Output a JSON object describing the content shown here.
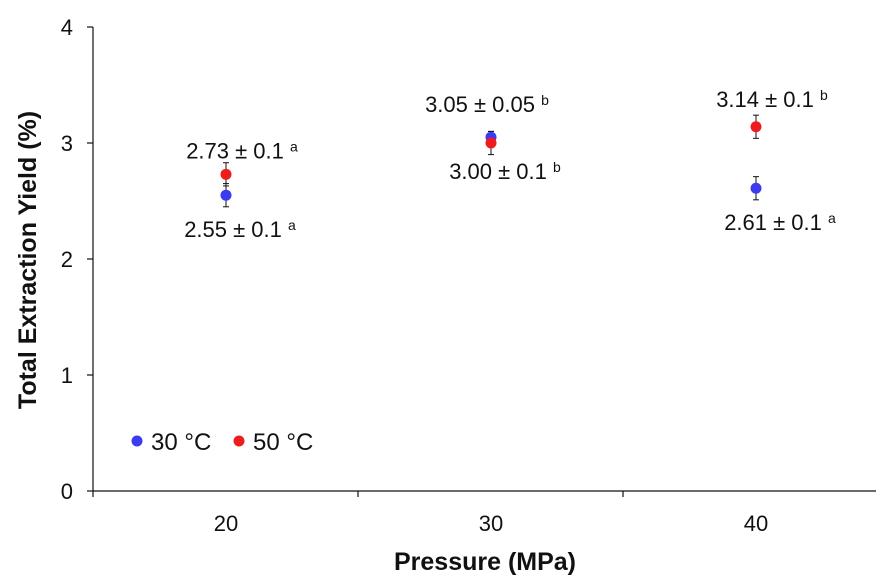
{
  "chart_data": {
    "type": "scatter",
    "title": "",
    "xlabel": "Pressure (MPa)",
    "ylabel": "Total Extraction Yield (%)",
    "categories": [
      "20",
      "30",
      "40"
    ],
    "ylim": [
      0,
      4
    ],
    "yticks": [
      "0",
      "1",
      "2",
      "3",
      "4"
    ],
    "grid": false,
    "legend_position": "bottom-left",
    "series": [
      {
        "name": "30 °C",
        "color": "#3b3bf0",
        "values": [
          2.55,
          3.05,
          2.61
        ],
        "errors": [
          0.1,
          0.05,
          0.1
        ],
        "labels": [
          "2.55 ± 0.1",
          "3.05 ± 0.05",
          "2.61 ± 0.1"
        ],
        "superscripts": [
          "a",
          "b",
          "a"
        ]
      },
      {
        "name": "50 °C",
        "color": "#ee1c1c",
        "values": [
          2.73,
          3.0,
          3.14
        ],
        "errors": [
          0.1,
          0.1,
          0.1
        ],
        "labels": [
          "2.73 ± 0.1",
          "3.00 ± 0.1",
          "3.14 ± 0.1"
        ],
        "superscripts": [
          "a",
          "b",
          "b"
        ]
      }
    ]
  }
}
